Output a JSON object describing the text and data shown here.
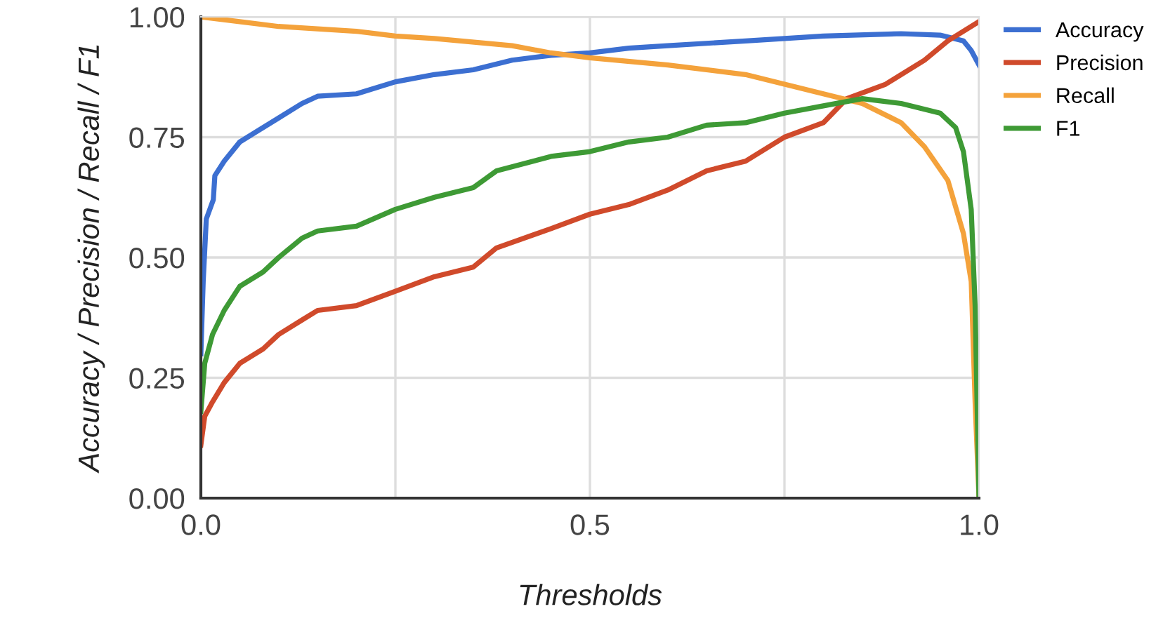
{
  "chart_data": {
    "type": "line",
    "xlabel": "Thresholds",
    "ylabel": "Accuracy / Precision / Recall / F1",
    "xlim": [
      0,
      1
    ],
    "ylim": [
      0,
      1
    ],
    "xticks": [
      {
        "value": 0,
        "label": "0.0"
      },
      {
        "value": 0.25,
        "label": null
      },
      {
        "value": 0.5,
        "label": "0.5"
      },
      {
        "value": 0.75,
        "label": null
      },
      {
        "value": 1,
        "label": "1.0"
      }
    ],
    "yticks": [
      {
        "value": 0,
        "label": "0.00"
      },
      {
        "value": 0.25,
        "label": "0.25"
      },
      {
        "value": 0.5,
        "label": "0.50"
      },
      {
        "value": 0.75,
        "label": "0.75"
      },
      {
        "value": 1,
        "label": "1.00"
      }
    ],
    "grid": true,
    "legend": "top right",
    "marker": "none",
    "line_style": "solid",
    "series": [
      {
        "name": "Accuracy",
        "color": "#3c6fd1",
        "x": [
          0,
          0.003,
          0.007,
          0.016,
          0.018,
          0.03,
          0.05,
          0.07,
          0.1,
          0.13,
          0.15,
          0.2,
          0.25,
          0.3,
          0.35,
          0.4,
          0.45,
          0.5,
          0.55,
          0.6,
          0.7,
          0.8,
          0.9,
          0.95,
          0.98,
          0.99,
          1.0
        ],
        "values": [
          0.3,
          0.45,
          0.58,
          0.62,
          0.67,
          0.7,
          0.74,
          0.76,
          0.79,
          0.82,
          0.835,
          0.84,
          0.865,
          0.88,
          0.89,
          0.91,
          0.92,
          0.925,
          0.935,
          0.94,
          0.95,
          0.96,
          0.965,
          0.962,
          0.95,
          0.93,
          0.9
        ]
      },
      {
        "name": "Precision",
        "color": "#d04a2b",
        "x": [
          0,
          0.005,
          0.015,
          0.03,
          0.05,
          0.08,
          0.1,
          0.13,
          0.15,
          0.2,
          0.25,
          0.3,
          0.35,
          0.38,
          0.45,
          0.5,
          0.55,
          0.6,
          0.65,
          0.7,
          0.75,
          0.8,
          0.83,
          0.88,
          0.93,
          0.96,
          1.0
        ],
        "values": [
          0.11,
          0.17,
          0.2,
          0.24,
          0.28,
          0.31,
          0.34,
          0.37,
          0.39,
          0.4,
          0.43,
          0.46,
          0.48,
          0.52,
          0.56,
          0.59,
          0.61,
          0.64,
          0.68,
          0.7,
          0.75,
          0.78,
          0.83,
          0.86,
          0.91,
          0.95,
          0.99
        ]
      },
      {
        "name": "Recall",
        "color": "#f4a23b",
        "x": [
          0,
          0.05,
          0.1,
          0.2,
          0.25,
          0.3,
          0.4,
          0.45,
          0.5,
          0.6,
          0.7,
          0.75,
          0.8,
          0.85,
          0.9,
          0.93,
          0.96,
          0.98,
          0.99,
          0.995,
          1.0
        ],
        "values": [
          1.0,
          0.99,
          0.98,
          0.97,
          0.96,
          0.955,
          0.94,
          0.925,
          0.915,
          0.9,
          0.88,
          0.86,
          0.84,
          0.82,
          0.78,
          0.73,
          0.66,
          0.55,
          0.45,
          0.2,
          0.0
        ]
      },
      {
        "name": "F1",
        "color": "#3e9a35",
        "x": [
          0,
          0.005,
          0.015,
          0.03,
          0.05,
          0.08,
          0.1,
          0.13,
          0.15,
          0.2,
          0.25,
          0.3,
          0.35,
          0.38,
          0.45,
          0.5,
          0.55,
          0.6,
          0.65,
          0.7,
          0.75,
          0.8,
          0.85,
          0.9,
          0.95,
          0.97,
          0.98,
          0.99,
          0.995,
          1.0
        ],
        "values": [
          0.18,
          0.28,
          0.34,
          0.39,
          0.44,
          0.47,
          0.5,
          0.54,
          0.555,
          0.565,
          0.6,
          0.625,
          0.645,
          0.68,
          0.71,
          0.72,
          0.74,
          0.75,
          0.775,
          0.78,
          0.8,
          0.815,
          0.83,
          0.82,
          0.8,
          0.77,
          0.72,
          0.6,
          0.4,
          0.0
        ]
      }
    ]
  }
}
